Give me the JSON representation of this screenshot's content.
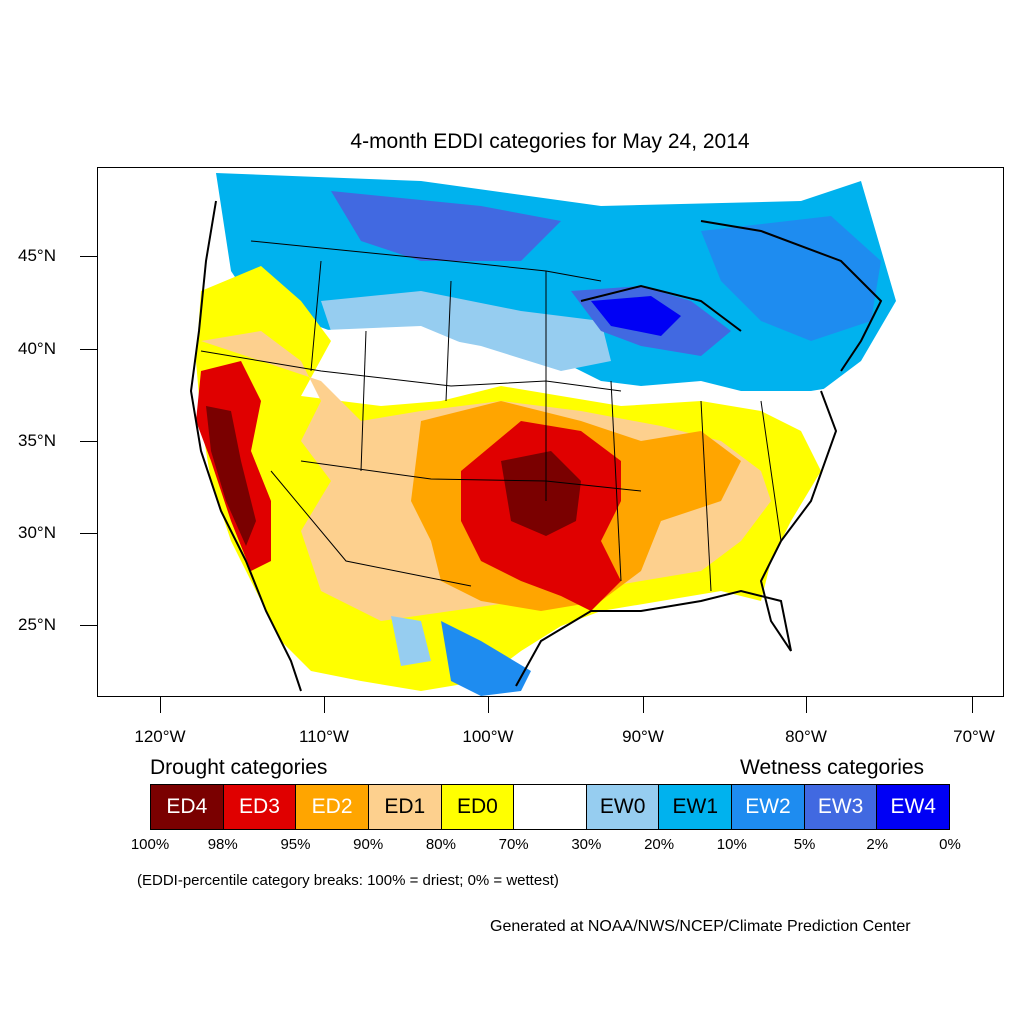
{
  "title": "4-month EDDI categories for May 24, 2014",
  "latitude_labels": [
    "45°N",
    "40°N",
    "35°N",
    "30°N",
    "25°N"
  ],
  "longitude_labels": [
    "120°W",
    "110°W",
    "100°W",
    "90°W",
    "80°W",
    "70°W"
  ],
  "legend": {
    "drought_heading": "Drought categories",
    "wetness_heading": "Wetness categories",
    "categories": [
      {
        "label": "ED4",
        "color": "#7a0000",
        "text_color": "#ffffff"
      },
      {
        "label": "ED3",
        "color": "#e00000",
        "text_color": "#ffffff"
      },
      {
        "label": "ED2",
        "color": "#ffa500",
        "text_color": "#ffffff"
      },
      {
        "label": "ED1",
        "color": "#fdd08e",
        "text_color": "#000000"
      },
      {
        "label": "ED0",
        "color": "#ffff00",
        "text_color": "#000000"
      },
      {
        "label": "",
        "color": "#ffffff",
        "text_color": "#000000"
      },
      {
        "label": "EW0",
        "color": "#96cdf0",
        "text_color": "#000000"
      },
      {
        "label": "EW1",
        "color": "#00b2ee",
        "text_color": "#000000"
      },
      {
        "label": "EW2",
        "color": "#1e8cf0",
        "text_color": "#ffffff"
      },
      {
        "label": "EW3",
        "color": "#4169e1",
        "text_color": "#ffffff"
      },
      {
        "label": "EW4",
        "color": "#0000f5",
        "text_color": "#ffffff"
      }
    ],
    "percentiles": [
      "100%",
      "98%",
      "95%",
      "90%",
      "80%",
      "70%",
      "30%",
      "20%",
      "10%",
      "5%",
      "2%",
      "0%"
    ]
  },
  "note": "(EDDI-percentile category breaks: 100% = driest; 0% = wettest)",
  "credit": "Generated at NOAA/NWS/NCEP/Climate Prediction Center"
}
